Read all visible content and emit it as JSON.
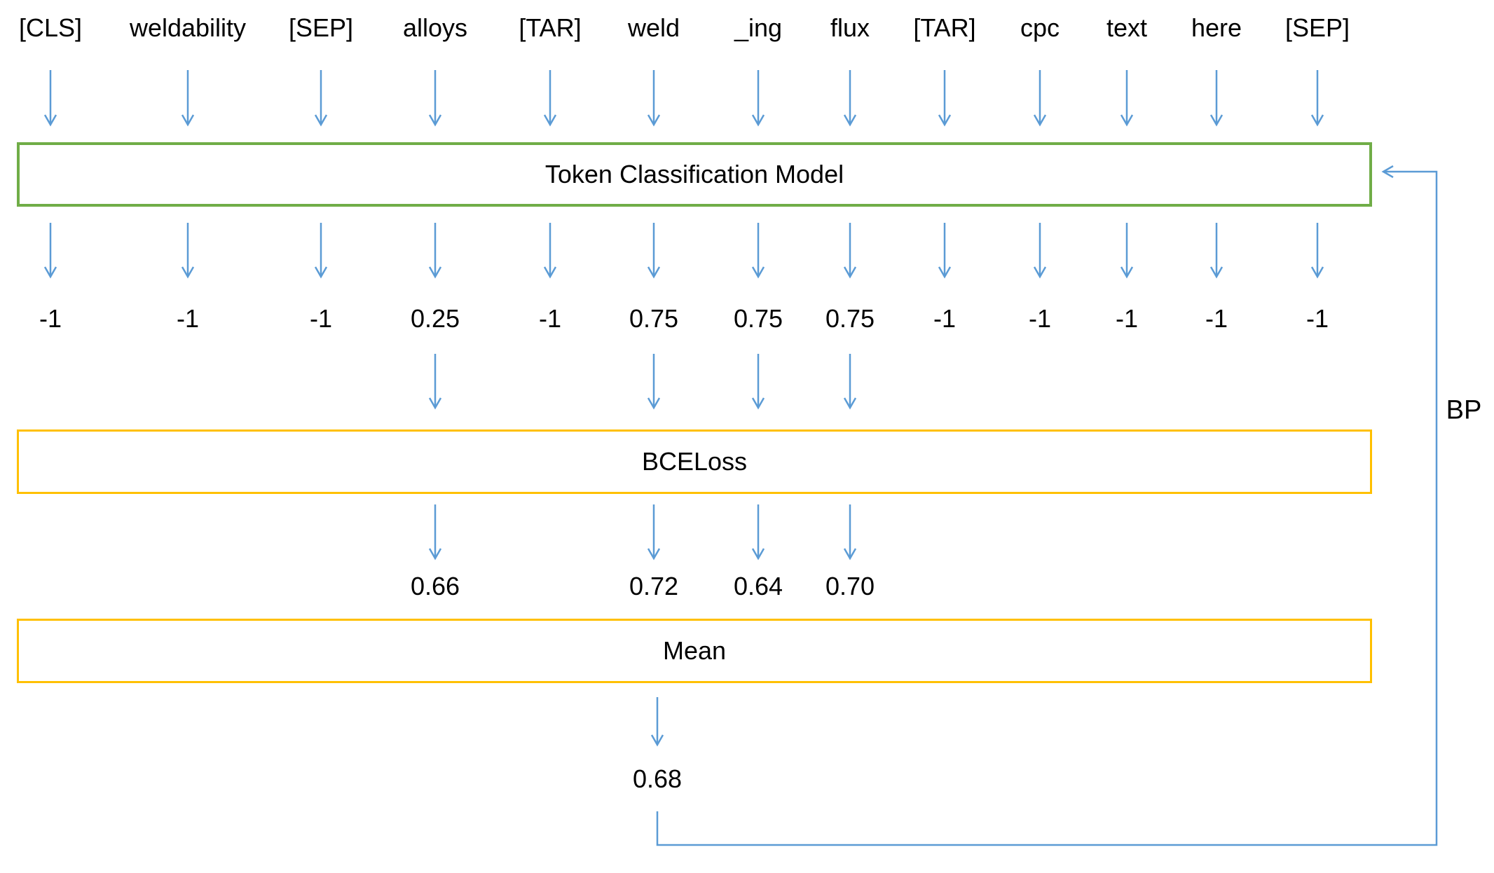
{
  "diagram": {
    "tokens": [
      "[CLS]",
      "weldability",
      "[SEP]",
      "alloys",
      "[TAR]",
      "weld",
      "_ing",
      "flux",
      "[TAR]",
      "cpc",
      "text",
      "here",
      "[SEP]"
    ],
    "predictions": [
      "-1",
      "-1",
      "-1",
      "0.25",
      "-1",
      "0.75",
      "0.75",
      "0.75",
      "-1",
      "-1",
      "-1",
      "-1",
      "-1"
    ],
    "active_token_indices": [
      3,
      5,
      6,
      7
    ],
    "losses": [
      "0.66",
      "0.72",
      "0.64",
      "0.70"
    ],
    "mean_loss": "0.68",
    "boxes": {
      "model_label": "Token Classification Model",
      "bce_label": "BCELoss",
      "mean_label": "Mean"
    },
    "bp_label": "BP",
    "colors": {
      "arrow_blue": "#5B9BD5",
      "model_box_green": "#70AD47",
      "loss_box_orange": "#FFC000",
      "text_black": "#000000",
      "background": "#FFFFFF"
    }
  }
}
